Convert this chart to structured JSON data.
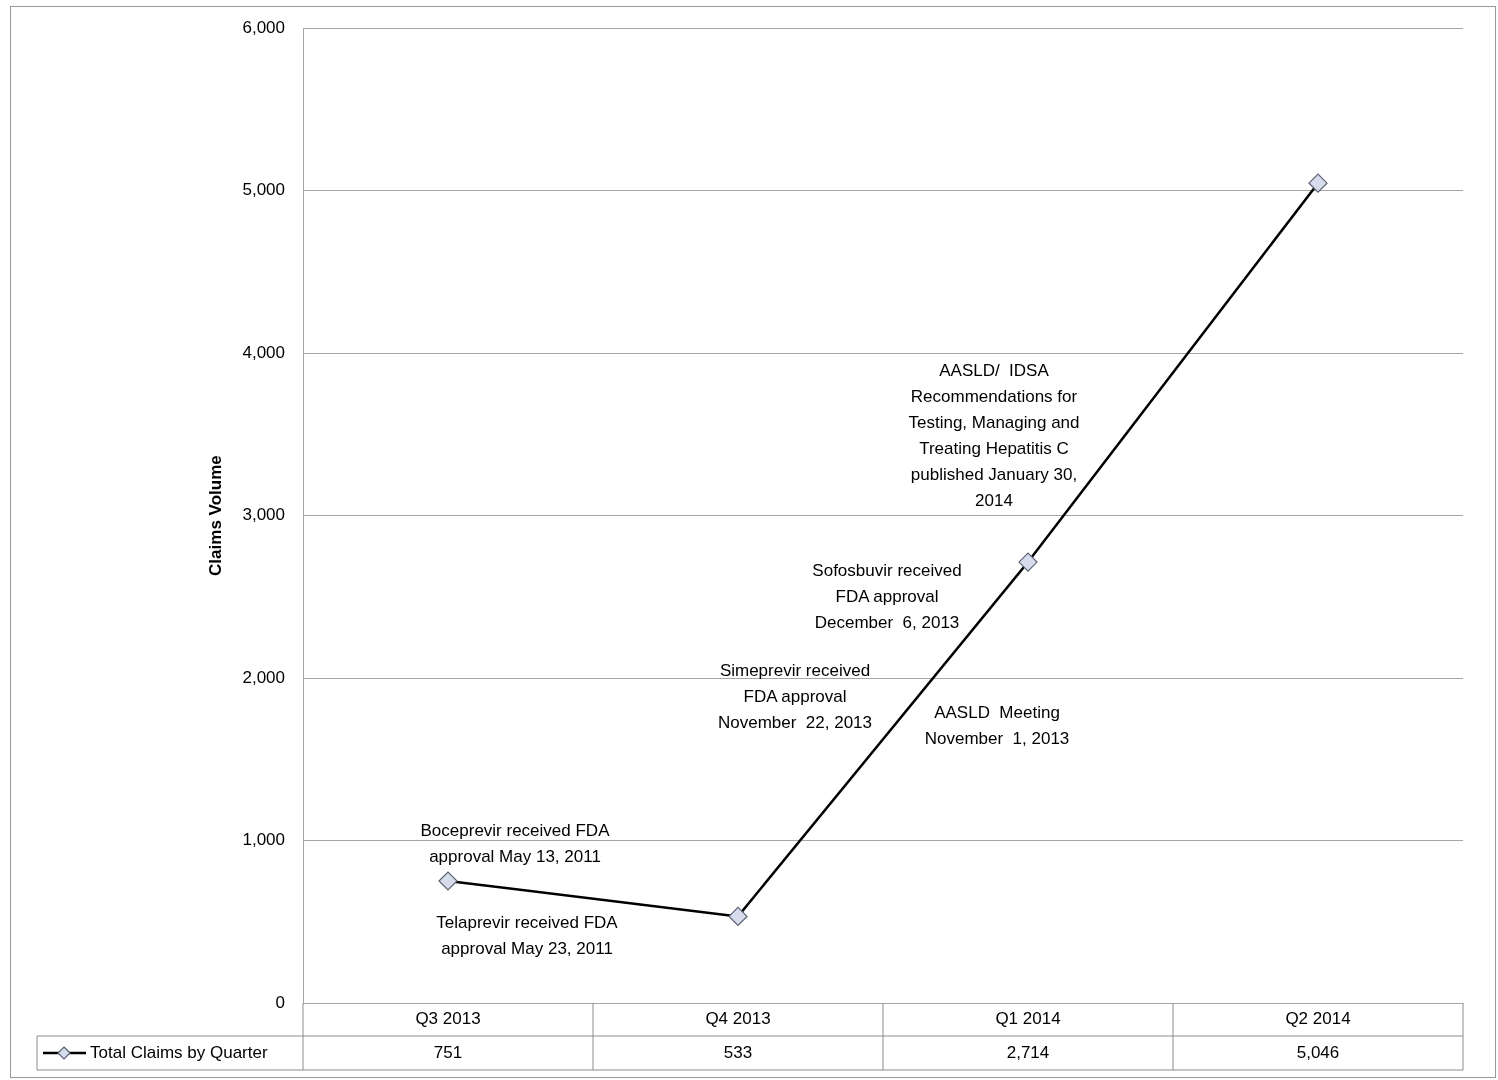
{
  "chart_data": {
    "type": "line",
    "ylabel": "Claims Volume",
    "categories": [
      "Q3 2013",
      "Q4 2013",
      "Q1 2014",
      "Q2 2014"
    ],
    "series": [
      {
        "name": "Total Claims by Quarter",
        "color": "#000000",
        "values": [
          751,
          533,
          2714,
          5046
        ],
        "value_labels": [
          "751",
          "533",
          "2,714",
          "5,046"
        ]
      }
    ],
    "ylim": [
      0,
      6000
    ],
    "yticks": [
      {
        "value": 0,
        "label": "0"
      },
      {
        "value": 1000,
        "label": "1,000"
      },
      {
        "value": 2000,
        "label": "2,000"
      },
      {
        "value": 3000,
        "label": "3,000"
      },
      {
        "value": 4000,
        "label": "4,000"
      },
      {
        "value": 5000,
        "label": "5,000"
      },
      {
        "value": 6000,
        "label": "6,000"
      }
    ],
    "grid": "y",
    "marker": "diamond",
    "line_style": "solid",
    "legend": "bottom",
    "annotations": [
      "Boceprevir received FDA approval May 13, 2011",
      "Telaprevir received FDA approval May 23, 2011",
      "Simeprevir received FDA approval November  22, 2013",
      "Sofosbuvir received FDA approval December  6, 2013",
      "AASLD  Meeting November  1, 2013",
      "AASLD/  IDSA Recommendations for Testing, Managing and Treating Hepatitis C published January 30, 2014"
    ]
  }
}
